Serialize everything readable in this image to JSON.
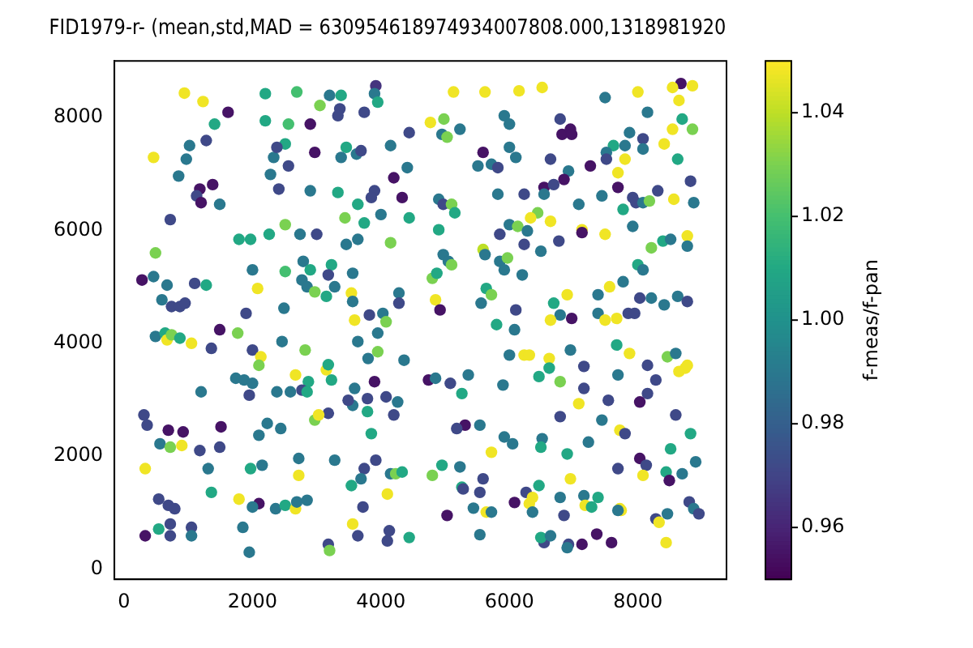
{
  "chart_data": {
    "type": "scatter",
    "title": "FID1979-r- (mean,std,MAD = 630954618974934007808.000,1318981920",
    "clabel": "f-meas/f-pan",
    "marker": "circle",
    "grid": false,
    "legend": false,
    "xlim": [
      -150,
      9380
    ],
    "ylim": [
      -180,
      9000
    ],
    "xticks": [
      0,
      2000,
      4000,
      6000,
      8000
    ],
    "yticks": [
      0,
      2000,
      4000,
      6000,
      8000
    ],
    "clim": [
      0.95,
      1.05
    ],
    "cticks": [
      0.96,
      0.98,
      {
        "value": 1,
        "label": "1.00"
      },
      1.02,
      1.04
    ],
    "x": [
      940,
      1230,
      1620,
      2200,
      2690,
      1410,
      2200,
      2560,
      2900,
      1020,
      1280,
      460,
      970,
      2330,
      2510,
      2380,
      2970,
      850,
      2280,
      2560,
      1180,
      1380,
      1130,
      1200,
      1490,
      2410,
      2900,
      720,
      490,
      1790,
      1970,
      2260,
      2510,
      2740,
      3000,
      2000,
      2510,
      2790,
      2900,
      2770,
      2850,
      2970,
      2080,
      280,
      460,
      670,
      1100,
      1280,
      590,
      740,
      870,
      950,
      1900,
      2490,
      3920,
      3900,
      3950,
      3200,
      3380,
      3050,
      3360,
      3330,
      3740,
      5130,
      5620,
      6150,
      4770,
      4980,
      4950,
      5030,
      5230,
      4440,
      5920,
      6000,
      3460,
      3380,
      3620,
      3690,
      4150,
      4410,
      4200,
      5590,
      6000,
      6100,
      5510,
      5720,
      5820,
      3330,
      3900,
      3850,
      4330,
      3640,
      3440,
      3740,
      4000,
      4440,
      4900,
      4970,
      5100,
      5150,
      4900,
      5820,
      6230,
      3640,
      3460,
      4150,
      4970,
      5050,
      5100,
      5590,
      5620,
      5850,
      6000,
      6130,
      6230,
      5850,
      5920,
      5970,
      3230,
      3180,
      3280,
      3150,
      3540,
      3560,
      3560,
      4280,
      4280,
      4800,
      4870,
      4850,
      4920,
      5560,
      5640,
      5720,
      6100,
      3820,
      4030,
      3590,
      6510,
      7490,
      8000,
      8670,
      8540,
      8850,
      8640,
      8150,
      8690,
      8540,
      8850,
      6790,
      6820,
      6950,
      6970,
      7870,
      8080,
      8080,
      8410,
      7620,
      7800,
      7510,
      7510,
      7800,
      8620,
      6640,
      7260,
      7690,
      6920,
      6850,
      6540,
      6690,
      6540,
      7690,
      7920,
      7970,
      8080,
      8180,
      8310,
      8560,
      8820,
      8870,
      7440,
      7770,
      7080,
      6440,
      6330,
      6640,
      6280,
      7130,
      7130,
      7490,
      7920,
      6490,
      6770,
      8210,
      8390,
      8510,
      8770,
      8770,
      6200,
      8000,
      8080,
      6900,
      7560,
      7770,
      7380,
      8030,
      8210,
      8410,
      8620,
      8770,
      6690,
      6790,
      6970,
      7380,
      7490,
      7670,
      7850,
      7950,
      6640,
      490,
      640,
      670,
      740,
      870,
      1050,
      1360,
      1490,
      1770,
      2000,
      2130,
      2100,
      2460,
      2820,
      2670,
      2870,
      2770,
      2850,
      1740,
      1870,
      2000,
      1950,
      2380,
      2590,
      1200,
      310,
      360,
      690,
      920,
      1510,
      2230,
      2100,
      2440,
      2970,
      560,
      720,
      900,
      1180,
      1490,
      330,
      1310,
      1970,
      2150,
      2720,
      2720,
      1360,
      540,
      690,
      790,
      1790,
      2100,
      2000,
      2360,
      2510,
      2670,
      2690,
      2850,
      720,
      540,
      1050,
      330,
      720,
      1050,
      1850,
      1950,
      4080,
      3640,
      3950,
      3950,
      3800,
      4360,
      3150,
      3180,
      3230,
      3590,
      3560,
      3490,
      3790,
      3790,
      3900,
      4080,
      4260,
      4200,
      3180,
      3030,
      3850,
      4740,
      4850,
      5080,
      5360,
      5260,
      5900,
      5800,
      6080,
      6000,
      6230,
      5310,
      5180,
      5540,
      5720,
      5920,
      6050,
      3280,
      3740,
      3920,
      3690,
      3540,
      4150,
      4230,
      4330,
      4800,
      4950,
      5230,
      5590,
      5260,
      5280,
      5540,
      4100,
      3720,
      3560,
      3640,
      4130,
      4100,
      4440,
      3180,
      3200,
      5030,
      5440,
      5640,
      5720,
      5540,
      6080,
      6260,
      6310,
      6620,
      6620,
      6460,
      6790,
      6950,
      7160,
      7160,
      7080,
      7690,
      7670,
      7870,
      8150,
      8280,
      8150,
      8030,
      7540,
      8460,
      8590,
      8640,
      8740,
      8770,
      8590,
      6790,
      7440,
      7720,
      7800,
      8820,
      6510,
      6490,
      7230,
      6900,
      8030,
      8510,
      7690,
      8130,
      8080,
      8440,
      8690,
      8490,
      8900,
      6950,
      6460,
      6360,
      6310,
      6790,
      7160,
      7380,
      7180,
      7280,
      7720,
      7740,
      7690,
      6360,
      6850,
      8280,
      8330,
      8460,
      8800,
      8870,
      8950,
      7360,
      7590,
      7130,
      6920,
      6900,
      6540,
      6490,
      6640,
      8440
    ],
    "values": [
      8430,
      8280,
      8090,
      8420,
      8450,
      7880,
      7940,
      7880,
      7880,
      7500,
      7590,
      7290,
      7260,
      7290,
      7530,
      7470,
      7380,
      6960,
      6990,
      7140,
      6730,
      6810,
      6610,
      6490,
      6460,
      6730,
      6700,
      6190,
      5600,
      5840,
      5840,
      5930,
      6100,
      5930,
      5930,
      5300,
      5270,
      5450,
      5300,
      5120,
      5000,
      4910,
      4970,
      5120,
      5180,
      5030,
      5060,
      5030,
      4770,
      4650,
      4650,
      4710,
      4530,
      4620,
      8560,
      8420,
      8270,
      8390,
      8390,
      8210,
      8150,
      8030,
      8090,
      8450,
      8450,
      8470,
      7910,
      7970,
      7700,
      7650,
      7790,
      7730,
      8030,
      7880,
      7470,
      7290,
      7350,
      7410,
      7500,
      7110,
      6930,
      7380,
      7470,
      7290,
      7140,
      7170,
      7110,
      6670,
      6700,
      6580,
      6580,
      6460,
      6220,
      6130,
      6280,
      6220,
      6550,
      6460,
      6460,
      6310,
      6010,
      6640,
      6640,
      5840,
      5750,
      5780,
      5570,
      5450,
      5390,
      5660,
      5570,
      5930,
      6100,
      6070,
      5750,
      5450,
      5300,
      5510,
      5390,
      5210,
      5000,
      4830,
      4890,
      4740,
      5240,
      4890,
      4710,
      5150,
      5240,
      4770,
      4590,
      4710,
      4970,
      4860,
      4590,
      4500,
      4530,
      4410,
      8530,
      8350,
      8450,
      8600,
      8530,
      8560,
      8300,
      8090,
      7970,
      7790,
      7790,
      7970,
      7700,
      7790,
      7700,
      7730,
      7620,
      7440,
      7530,
      7500,
      7500,
      7380,
      7260,
      7260,
      7260,
      7260,
      7140,
      7020,
      7050,
      6900,
      6760,
      6810,
      6640,
      6760,
      6580,
      6490,
      6490,
      6520,
      6700,
      6550,
      6870,
      6490,
      6610,
      6370,
      6460,
      6310,
      6220,
      6160,
      5990,
      6010,
      5960,
      5930,
      6070,
      5630,
      5810,
      5690,
      5810,
      5840,
      5900,
      5720,
      5210,
      5390,
      5300,
      4860,
      5000,
      5090,
      4860,
      4800,
      4800,
      4680,
      4830,
      4740,
      4710,
      4500,
      4440,
      4530,
      4410,
      4440,
      4530,
      4530,
      4410,
      4120,
      4180,
      4060,
      4150,
      4090,
      4000,
      3910,
      4240,
      4180,
      3880,
      3760,
      3610,
      4030,
      3880,
      3440,
      3320,
      3170,
      3140,
      3380,
      3350,
      3290,
      3080,
      3140,
      3140,
      3140,
      2730,
      2550,
      2460,
      2430,
      2520,
      2580,
      2370,
      2490,
      2640,
      2220,
      2160,
      2190,
      2100,
      2160,
      1780,
      1780,
      1780,
      1840,
      1960,
      1660,
      1360,
      1240,
      1130,
      1070,
      1240,
      1160,
      1100,
      1070,
      1130,
      1070,
      1190,
      1220,
      800,
      710,
      740,
      590,
      590,
      590,
      740,
      300,
      4380,
      4030,
      4180,
      3850,
      3730,
      3700,
      3530,
      3620,
      3350,
      3200,
      2900,
      2990,
      3020,
      2790,
      3320,
      3050,
      2960,
      2730,
      2760,
      2730,
      2400,
      3350,
      3380,
      3290,
      3440,
      3110,
      3260,
      4330,
      4240,
      3790,
      3790,
      2550,
      2490,
      2550,
      2070,
      2340,
      2220,
      1930,
      1780,
      1930,
      1600,
      1480,
      1690,
      1690,
      1720,
      1660,
      1840,
      1810,
      1600,
      1450,
      1420,
      1360,
      1330,
      1100,
      800,
      590,
      680,
      500,
      560,
      440,
      330,
      950,
      1080,
      1010,
      1010,
      610,
      1180,
      1360,
      3790,
      3730,
      3560,
      3410,
      3320,
      3880,
      3590,
      3200,
      2930,
      3440,
      3970,
      3820,
      3610,
      3350,
      3110,
      2960,
      2990,
      3760,
      3820,
      3500,
      3560,
      3610,
      2730,
      2700,
      2640,
      2460,
      2400,
      2400,
      2310,
      2160,
      2250,
      2040,
      1960,
      2130,
      1780,
      1840,
      1660,
      1720,
      1690,
      1570,
      1900,
      1600,
      1480,
      1270,
      1160,
      1270,
      1300,
      1270,
      1130,
      1100,
      1070,
      1040,
      1040,
      1010,
      950,
      890,
      830,
      980,
      1190,
      1070,
      980,
      620,
      470,
      440,
      440,
      380,
      470,
      560,
      590,
      470
    ],
    "cvalues": [
      1.048,
      1.048,
      0.955,
      1.01,
      1.02,
      1.01,
      1.01,
      1.02,
      0.955,
      0.99,
      0.972,
      1.048,
      0.99,
      0.99,
      1.01,
      0.972,
      0.955,
      0.99,
      0.99,
      0.972,
      0.955,
      0.955,
      0.972,
      0.955,
      0.99,
      0.972,
      0.99,
      0.972,
      1.03,
      1.01,
      1.01,
      1.01,
      1.03,
      0.99,
      0.972,
      0.99,
      1.02,
      0.99,
      1.01,
      0.99,
      0.99,
      1.03,
      1.048,
      0.955,
      0.99,
      0.99,
      0.972,
      1.01,
      0.99,
      0.972,
      0.972,
      0.972,
      0.972,
      0.99,
      0.965,
      0.99,
      1.01,
      0.99,
      1.01,
      1.03,
      0.972,
      0.972,
      0.972,
      1.048,
      1.048,
      1.048,
      1.048,
      1.03,
      0.99,
      1.03,
      0.99,
      0.972,
      0.99,
      0.99,
      1.01,
      0.99,
      0.99,
      0.972,
      0.99,
      0.99,
      0.955,
      0.955,
      0.99,
      0.99,
      0.99,
      0.99,
      0.972,
      1.01,
      0.972,
      0.972,
      0.955,
      1.01,
      1.03,
      1.01,
      0.99,
      1.01,
      0.99,
      0.972,
      1.03,
      1.01,
      1.01,
      0.99,
      0.972,
      0.99,
      0.99,
      1.03,
      0.99,
      0.99,
      1.03,
      1.04,
      0.99,
      0.972,
      0.99,
      1.03,
      0.972,
      0.99,
      0.99,
      1.03,
      1.01,
      0.972,
      0.99,
      1.01,
      1.048,
      0.99,
      0.99,
      0.99,
      0.972,
      1.03,
      1.01,
      1.048,
      0.955,
      0.99,
      1.01,
      1.03,
      0.972,
      0.972,
      0.99,
      1.048,
      1.048,
      0.99,
      1.048,
      0.955,
      1.048,
      1.048,
      1.048,
      0.99,
      1.01,
      1.048,
      1.03,
      0.972,
      0.955,
      0.955,
      0.955,
      0.99,
      0.972,
      0.99,
      1.048,
      1.01,
      0.99,
      0.99,
      0.972,
      1.048,
      1.01,
      0.972,
      0.955,
      1.048,
      0.99,
      0.955,
      0.955,
      0.972,
      0.99,
      0.955,
      0.972,
      0.972,
      0.99,
      1.03,
      0.972,
      1.048,
      0.972,
      0.99,
      0.99,
      1.01,
      0.99,
      1.03,
      1.048,
      1.048,
      0.99,
      1.048,
      0.955,
      1.048,
      0.99,
      0.99,
      0.972,
      1.03,
      1.01,
      0.99,
      1.048,
      0.99,
      0.99,
      1.01,
      0.99,
      1.048,
      1.048,
      0.99,
      0.99,
      0.972,
      0.99,
      0.99,
      0.99,
      0.972,
      1.01,
      0.99,
      0.955,
      0.99,
      1.048,
      1.048,
      0.972,
      0.972,
      1.048,
      0.99,
      1.01,
      1.048,
      1.03,
      1.01,
      1.048,
      0.972,
      0.955,
      1.03,
      0.972,
      1.048,
      1.03,
      0.99,
      1.03,
      1.048,
      1.01,
      0.972,
      1.01,
      0.99,
      0.99,
      0.99,
      0.972,
      0.99,
      0.99,
      0.99,
      0.972,
      0.972,
      0.955,
      0.955,
      0.955,
      0.99,
      0.99,
      0.99,
      1.03,
      0.99,
      1.03,
      1.048,
      0.972,
      0.972,
      1.048,
      0.99,
      1.01,
      0.99,
      0.99,
      1.048,
      1.01,
      0.972,
      0.972,
      0.972,
      1.048,
      0.955,
      0.99,
      0.99,
      1.01,
      1.048,
      0.99,
      0.99,
      0.972,
      1.01,
      0.972,
      0.955,
      0.972,
      0.99,
      0.99,
      0.99,
      1.03,
      0.99,
      0.99,
      1.03,
      0.99,
      0.99,
      1.048,
      1.01,
      1.01,
      0.99,
      0.99,
      0.972,
      0.972,
      1.01,
      0.955,
      0.972,
      0.99,
      0.972,
      0.972,
      1.048,
      1.01,
      0.955,
      0.99,
      0.972,
      0.99,
      1.01,
      0.99,
      1.01,
      0.99,
      0.99,
      1.048,
      0.955,
      0.972,
      0.99,
      1.048,
      0.99,
      0.99,
      0.99,
      0.972,
      0.972,
      0.99,
      1.01,
      0.99,
      1.03,
      1.01,
      1.03,
      1.01,
      0.99,
      0.972,
      1.01,
      0.972,
      0.972,
      1.048,
      0.972,
      1.048,
      0.972,
      0.972,
      0.972,
      1.01,
      0.972,
      1.03,
      0.955,
      0.99,
      1.048,
      0.99,
      0.99,
      0.955,
      0.972,
      1.048,
      1.048,
      1.01,
      1.01,
      1.03,
      0.99,
      0.972,
      0.972,
      1.048,
      0.99,
      1.01,
      1.048,
      0.972,
      0.972,
      0.972,
      0.955,
      0.972,
      1.03,
      0.99,
      1.048,
      1.048,
      1.048,
      0.972,
      0.972,
      0.99,
      1.048,
      0.972,
      1.01,
      0.99,
      1.01,
      0.99,
      1.01,
      0.955,
      1.01,
      0.972,
      0.972,
      1.048,
      1.01,
      0.99,
      0.955,
      0.99,
      1.048,
      1.01,
      1.048,
      1.048,
      0.99,
      0.99,
      1.01,
      1.048,
      1.01,
      1.048,
      1.048,
      0.99,
      0.99,
      0.972,
      0.972,
      1.048,
      0.99,
      0.972,
      0.99,
      0.972,
      0.955,
      0.955,
      0.955,
      0.972,
      0.99,
      0.972,
      1.01,
      0.99,
      1.048
    ]
  }
}
